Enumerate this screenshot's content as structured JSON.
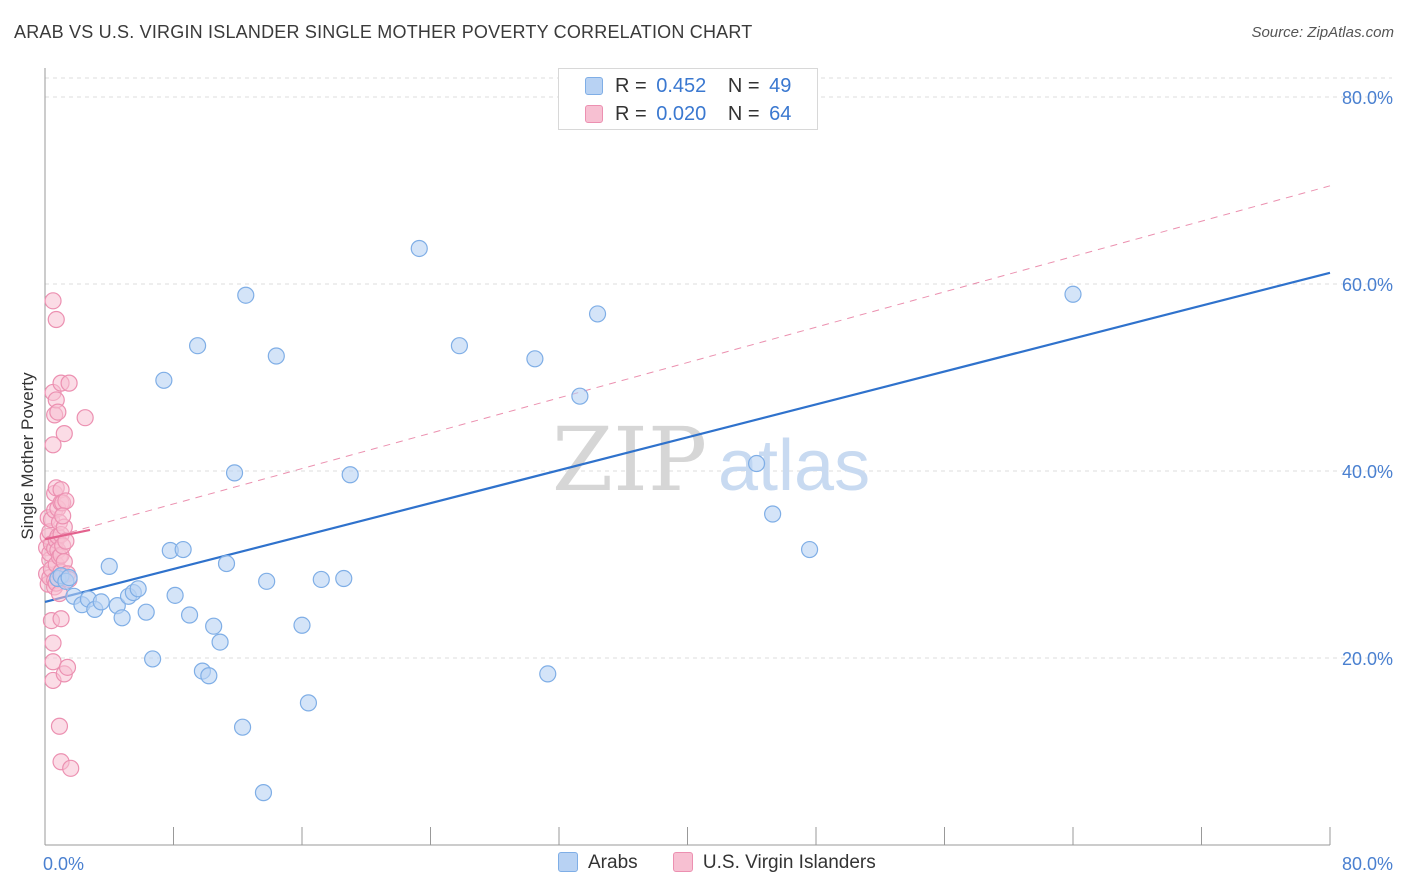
{
  "title": "ARAB VS U.S. VIRGIN ISLANDER SINGLE MOTHER POVERTY CORRELATION CHART",
  "source": "Source: ZipAtlas.com",
  "watermark": {
    "zip": "ZIP",
    "atlas": "atlas"
  },
  "legend_top": {
    "rows": [
      {
        "r_label": "R =",
        "r_value": "0.452",
        "n_label": "N =",
        "n_value": "49"
      },
      {
        "r_label": "R =",
        "r_value": "0.020",
        "n_label": "N =",
        "n_value": "64"
      }
    ]
  },
  "colors": {
    "arab_fill": "#b8d2f3",
    "arab_stroke": "#7faee6",
    "arab_line": "#2f72cc",
    "vi_fill": "#f7c0d2",
    "vi_stroke": "#ec90b1",
    "vi_line": "#e3628e",
    "grid": "#dddddd",
    "axis_text": "#4a80d0"
  },
  "chart_data": {
    "type": "scatter",
    "title": "ARAB VS U.S. VIRGIN ISLANDER SINGLE MOTHER POVERTY CORRELATION CHART",
    "xlabel": "",
    "ylabel": "Single Mother Poverty",
    "xlim": [
      0,
      80
    ],
    "ylim": [
      0,
      80
    ],
    "x_tick_labels": [
      "0.0%",
      "80.0%"
    ],
    "y_ticks": [
      20,
      40,
      60,
      80
    ],
    "y_tick_labels": [
      "20.0%",
      "40.0%",
      "60.0%",
      "80.0%"
    ],
    "grid": true,
    "legend_position": "bottom",
    "series": [
      {
        "name": "Arabs",
        "r": 0.452,
        "n": 49,
        "trend": {
          "x": [
            0,
            80
          ],
          "y": [
            26.0,
            61.2
          ],
          "style": "solid"
        },
        "points": [
          [
            0.8,
            28.5
          ],
          [
            1.0,
            28.8
          ],
          [
            1.3,
            28.2
          ],
          [
            1.5,
            28.6
          ],
          [
            1.8,
            26.6
          ],
          [
            2.3,
            25.7
          ],
          [
            2.7,
            26.3
          ],
          [
            3.1,
            25.2
          ],
          [
            3.5,
            26.0
          ],
          [
            4.0,
            29.8
          ],
          [
            4.5,
            25.6
          ],
          [
            4.8,
            24.3
          ],
          [
            5.2,
            26.6
          ],
          [
            5.5,
            27.0
          ],
          [
            5.8,
            27.4
          ],
          [
            6.3,
            24.9
          ],
          [
            6.7,
            19.9
          ],
          [
            7.4,
            49.7
          ],
          [
            7.8,
            31.5
          ],
          [
            8.1,
            26.7
          ],
          [
            8.6,
            31.6
          ],
          [
            9.0,
            24.6
          ],
          [
            9.5,
            53.4
          ],
          [
            9.8,
            18.6
          ],
          [
            10.2,
            18.1
          ],
          [
            10.5,
            23.4
          ],
          [
            10.9,
            21.7
          ],
          [
            11.3,
            30.1
          ],
          [
            11.8,
            39.8
          ],
          [
            12.3,
            12.6
          ],
          [
            12.5,
            58.8
          ],
          [
            13.6,
            5.6
          ],
          [
            13.8,
            28.2
          ],
          [
            14.4,
            52.3
          ],
          [
            16.0,
            23.5
          ],
          [
            16.4,
            15.2
          ],
          [
            17.2,
            28.4
          ],
          [
            18.6,
            28.5
          ],
          [
            19.0,
            39.6
          ],
          [
            23.3,
            63.8
          ],
          [
            25.8,
            53.4
          ],
          [
            30.5,
            52.0
          ],
          [
            31.3,
            18.3
          ],
          [
            33.3,
            48.0
          ],
          [
            34.4,
            56.8
          ],
          [
            44.3,
            40.8
          ],
          [
            45.3,
            35.4
          ],
          [
            47.6,
            31.6
          ],
          [
            64.0,
            58.9
          ]
        ]
      },
      {
        "name": "U.S. Virgin Islanders",
        "r": 0.02,
        "n": 64,
        "trend": {
          "x": [
            0,
            2.8
          ],
          "y": [
            32.7,
            33.7
          ],
          "style": "solid"
        },
        "trend_extended": {
          "x": [
            0,
            80
          ],
          "y": [
            32.7,
            70.5
          ],
          "style": "dashed"
        },
        "points": [
          [
            0.1,
            29.0
          ],
          [
            0.1,
            31.8
          ],
          [
            0.2,
            33.0
          ],
          [
            0.2,
            35.0
          ],
          [
            0.2,
            27.9
          ],
          [
            0.3,
            30.5
          ],
          [
            0.3,
            31.2
          ],
          [
            0.3,
            33.5
          ],
          [
            0.3,
            28.6
          ],
          [
            0.4,
            32.2
          ],
          [
            0.4,
            34.8
          ],
          [
            0.4,
            29.5
          ],
          [
            0.4,
            24.0
          ],
          [
            0.5,
            58.2
          ],
          [
            0.5,
            48.4
          ],
          [
            0.5,
            42.8
          ],
          [
            0.5,
            21.6
          ],
          [
            0.5,
            19.6
          ],
          [
            0.5,
            17.6
          ],
          [
            0.6,
            46.0
          ],
          [
            0.6,
            37.6
          ],
          [
            0.6,
            35.8
          ],
          [
            0.6,
            31.7
          ],
          [
            0.6,
            28.3
          ],
          [
            0.6,
            27.6
          ],
          [
            0.7,
            56.2
          ],
          [
            0.7,
            47.6
          ],
          [
            0.7,
            38.2
          ],
          [
            0.7,
            32.6
          ],
          [
            0.7,
            30.0
          ],
          [
            0.7,
            28.0
          ],
          [
            0.8,
            46.3
          ],
          [
            0.8,
            36.0
          ],
          [
            0.8,
            33.0
          ],
          [
            0.8,
            31.5
          ],
          [
            0.8,
            28.5
          ],
          [
            0.9,
            34.5
          ],
          [
            0.9,
            30.8
          ],
          [
            0.9,
            26.9
          ],
          [
            0.9,
            12.7
          ],
          [
            1.0,
            49.4
          ],
          [
            1.0,
            38.0
          ],
          [
            1.0,
            36.6
          ],
          [
            1.0,
            33.2
          ],
          [
            1.0,
            31.0
          ],
          [
            1.0,
            29.2
          ],
          [
            1.0,
            24.2
          ],
          [
            1.0,
            8.9
          ],
          [
            1.1,
            36.6
          ],
          [
            1.1,
            32.0
          ],
          [
            1.1,
            28.8
          ],
          [
            1.2,
            44.0
          ],
          [
            1.2,
            34.0
          ],
          [
            1.2,
            30.3
          ],
          [
            1.2,
            18.3
          ],
          [
            1.3,
            36.8
          ],
          [
            1.3,
            32.5
          ],
          [
            1.4,
            19.0
          ],
          [
            1.4,
            29.0
          ],
          [
            1.5,
            49.4
          ],
          [
            1.5,
            28.4
          ],
          [
            1.6,
            8.2
          ],
          [
            2.5,
            45.7
          ],
          [
            1.1,
            35.2
          ]
        ]
      }
    ]
  },
  "legend_bottom": [
    {
      "label": "Arabs"
    },
    {
      "label": "U.S. Virgin Islanders"
    }
  ]
}
